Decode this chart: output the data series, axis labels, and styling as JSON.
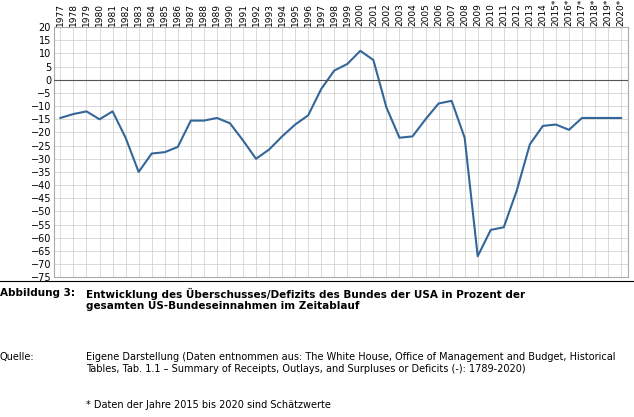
{
  "years": [
    1977,
    1978,
    1979,
    1980,
    1981,
    1982,
    1983,
    1984,
    1985,
    1986,
    1987,
    1988,
    1989,
    1990,
    1991,
    1992,
    1993,
    1994,
    1995,
    1996,
    1997,
    1998,
    1999,
    2000,
    2001,
    2002,
    2003,
    2004,
    2005,
    2006,
    2007,
    2008,
    2009,
    2010,
    2011,
    2012,
    2013,
    2014,
    2015,
    2016,
    2017,
    2018,
    2019,
    2020
  ],
  "values": [
    -14.5,
    -13.0,
    -12.0,
    -15.0,
    -12.0,
    -22.0,
    -35.0,
    -28.0,
    -27.5,
    -25.5,
    -15.5,
    -15.5,
    -14.5,
    -16.5,
    -23.0,
    -30.0,
    -26.5,
    -21.5,
    -17.0,
    -13.5,
    -3.5,
    3.5,
    6.0,
    11.0,
    7.5,
    -10.5,
    -22.0,
    -21.5,
    -15.0,
    -9.0,
    -8.0,
    -22.0,
    -67.0,
    -57.0,
    -56.0,
    -42.0,
    -24.5,
    -17.5,
    -17.0,
    -19.0,
    -14.5,
    -14.5,
    -14.5,
    -14.5
  ],
  "line_color": "#336699",
  "line_width": 1.5,
  "ylim": [
    -75,
    20
  ],
  "yticks": [
    20,
    15,
    10,
    5,
    0,
    -5,
    -10,
    -15,
    -20,
    -25,
    -30,
    -35,
    -40,
    -45,
    -50,
    -55,
    -60,
    -65,
    -70,
    -75
  ],
  "grid_color": "#cccccc",
  "bg_color": "#ffffff",
  "plot_bg_color": "#ffffff",
  "spine_color": "#aaaaaa",
  "title_label": "Abbildung 3:",
  "title_text": "Entwicklung des Überschusses/Defizits des Bundes der USA in Prozent der\ngesamten US-Bundeseinnahmen im Zeitablauf",
  "source_label": "Quelle:",
  "source_text": "Eigene Darstellung (Daten entnommen aus: The White House, Office of Management and Budget, Historical\nTables, Tab. 1.1 – Summary of Receipts, Outlays, and Surpluses or Deficits (-): 1789-2020)",
  "footnote": "* Daten der Jahre 2015 bis 2020 sind Schätzwerte",
  "star_years": [
    2015,
    2016,
    2017,
    2018,
    2019,
    2020
  ]
}
